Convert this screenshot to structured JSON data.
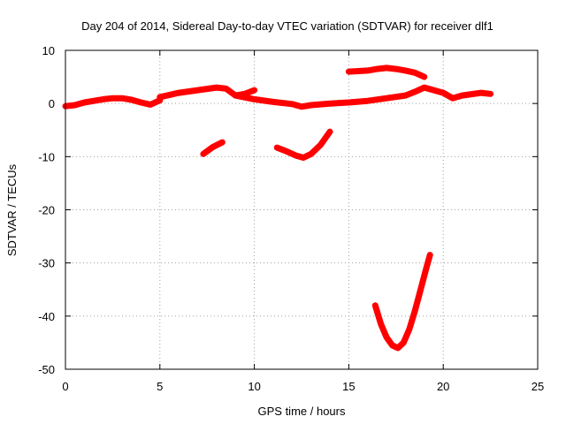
{
  "chart_data": {
    "type": "line",
    "title": "Day 204 of 2014, Sidereal Day-to-day VTEC variation (SDTVAR) for receiver dlf1",
    "xlabel": "GPS time / hours",
    "ylabel": "SDTVAR / TECUs",
    "xlim": [
      0,
      25
    ],
    "ylim": [
      -50,
      10
    ],
    "x_ticks": [
      0,
      5,
      10,
      15,
      20,
      25
    ],
    "y_ticks": [
      -50,
      -40,
      -30,
      -20,
      -10,
      0,
      10
    ],
    "x_tick_labels": [
      "0",
      "5",
      "10",
      "15",
      "20",
      "25"
    ],
    "y_tick_labels": [
      "-50",
      "-40",
      "-30",
      "-20",
      "-10",
      "0",
      "10"
    ],
    "grid": true,
    "legend": "none",
    "series_color": "#ff0000",
    "series": [
      {
        "name": "track-1",
        "x": [
          0.0,
          0.5,
          1.0,
          1.5,
          2.0,
          2.5,
          3.0,
          3.5,
          4.0,
          4.5,
          5.0
        ],
        "y": [
          -0.5,
          -0.3,
          0.2,
          0.5,
          0.8,
          1.0,
          1.0,
          0.7,
          0.2,
          -0.2,
          0.6
        ]
      },
      {
        "name": "track-2",
        "x": [
          5.0,
          6.0,
          7.0,
          8.0,
          8.5,
          9.0,
          9.5,
          10.0
        ],
        "y": [
          1.2,
          2.0,
          2.5,
          3.0,
          2.8,
          1.5,
          1.8,
          2.5
        ]
      },
      {
        "name": "track-3",
        "x": [
          9.0,
          10.0,
          11.0,
          12.0,
          12.5,
          13.0,
          14.0,
          15.0,
          16.0,
          17.0,
          18.0,
          18.5,
          19.0,
          19.5,
          20.0,
          20.5,
          21.0,
          22.0,
          22.5
        ],
        "y": [
          1.5,
          0.8,
          0.3,
          -0.1,
          -0.6,
          -0.3,
          0.0,
          0.2,
          0.5,
          1.0,
          1.5,
          2.2,
          3.0,
          2.5,
          2.0,
          1.0,
          1.5,
          2.0,
          1.8
        ]
      },
      {
        "name": "track-4",
        "x": [
          15.0,
          16.0,
          16.5,
          17.0,
          17.5,
          18.0,
          18.5,
          19.0
        ],
        "y": [
          6.0,
          6.2,
          6.5,
          6.7,
          6.5,
          6.2,
          5.8,
          5.0
        ]
      },
      {
        "name": "track-5",
        "x": [
          7.3,
          7.8,
          8.3
        ],
        "y": [
          -9.5,
          -8.2,
          -7.3
        ]
      },
      {
        "name": "track-6",
        "x": [
          11.2,
          11.7,
          12.2,
          12.6,
          13.0,
          13.5,
          14.0
        ],
        "y": [
          -8.3,
          -9.0,
          -9.8,
          -10.2,
          -9.5,
          -7.8,
          -5.3
        ]
      },
      {
        "name": "track-7",
        "x": [
          16.4,
          16.7,
          17.0,
          17.3,
          17.6,
          17.9,
          18.2,
          18.5,
          18.8,
          19.1,
          19.3
        ],
        "y": [
          -38.0,
          -41.5,
          -44.0,
          -45.5,
          -46.0,
          -45.0,
          -42.5,
          -39.0,
          -35.0,
          -31.0,
          -28.5
        ]
      }
    ]
  }
}
